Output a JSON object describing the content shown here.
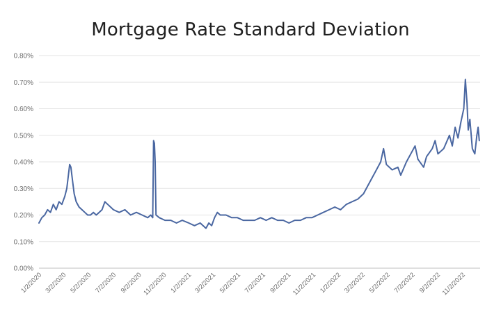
{
  "chart_data": {
    "type": "line",
    "title": "Mortgage Rate Standard Deviation",
    "xlabel": "",
    "ylabel": "",
    "ylim": [
      0,
      0.8
    ],
    "grid": true,
    "legend": "none",
    "y_ticks": [
      "0.00%",
      "0.10%",
      "0.20%",
      "0.30%",
      "0.40%",
      "0.50%",
      "0.60%",
      "0.70%",
      "0.80%"
    ],
    "x_ticks": [
      "1/2/2020",
      "3/2/2020",
      "5/2/2020",
      "7/2/2020",
      "9/2/2020",
      "11/2/2020",
      "1/2/2021",
      "3/2/2021",
      "5/2/2021",
      "7/2/2021",
      "9/2/2021",
      "11/2/2021",
      "1/2/2022",
      "3/2/2022",
      "5/2/2022",
      "7/2/2022",
      "9/2/2022",
      "11/2/2022"
    ],
    "series": [
      {
        "color": "#4a67a1",
        "points": [
          [
            "2020-01-02",
            0.17
          ],
          [
            "2020-01-09",
            0.19
          ],
          [
            "2020-01-16",
            0.2
          ],
          [
            "2020-01-23",
            0.22
          ],
          [
            "2020-01-30",
            0.21
          ],
          [
            "2020-02-06",
            0.24
          ],
          [
            "2020-02-13",
            0.22
          ],
          [
            "2020-02-20",
            0.25
          ],
          [
            "2020-02-27",
            0.24
          ],
          [
            "2020-03-05",
            0.27
          ],
          [
            "2020-03-10",
            0.3
          ],
          [
            "2020-03-14",
            0.35
          ],
          [
            "2020-03-17",
            0.39
          ],
          [
            "2020-03-20",
            0.38
          ],
          [
            "2020-03-24",
            0.33
          ],
          [
            "2020-03-28",
            0.28
          ],
          [
            "2020-04-02",
            0.25
          ],
          [
            "2020-04-09",
            0.23
          ],
          [
            "2020-04-16",
            0.22
          ],
          [
            "2020-04-23",
            0.21
          ],
          [
            "2020-04-30",
            0.2
          ],
          [
            "2020-05-07",
            0.2
          ],
          [
            "2020-05-14",
            0.21
          ],
          [
            "2020-05-21",
            0.2
          ],
          [
            "2020-05-28",
            0.21
          ],
          [
            "2020-06-04",
            0.22
          ],
          [
            "2020-06-11",
            0.25
          ],
          [
            "2020-06-18",
            0.24
          ],
          [
            "2020-06-25",
            0.23
          ],
          [
            "2020-07-02",
            0.22
          ],
          [
            "2020-07-16",
            0.21
          ],
          [
            "2020-07-30",
            0.22
          ],
          [
            "2020-08-13",
            0.2
          ],
          [
            "2020-08-27",
            0.21
          ],
          [
            "2020-09-10",
            0.2
          ],
          [
            "2020-09-24",
            0.19
          ],
          [
            "2020-10-01",
            0.2
          ],
          [
            "2020-10-06",
            0.19
          ],
          [
            "2020-10-08",
            0.48
          ],
          [
            "2020-10-10",
            0.47
          ],
          [
            "2020-10-12",
            0.4
          ],
          [
            "2020-10-14",
            0.2
          ],
          [
            "2020-10-22",
            0.19
          ],
          [
            "2020-11-05",
            0.18
          ],
          [
            "2020-11-19",
            0.18
          ],
          [
            "2020-12-03",
            0.17
          ],
          [
            "2020-12-17",
            0.18
          ],
          [
            "2021-01-02",
            0.17
          ],
          [
            "2021-01-16",
            0.16
          ],
          [
            "2021-01-30",
            0.17
          ],
          [
            "2021-02-13",
            0.15
          ],
          [
            "2021-02-20",
            0.17
          ],
          [
            "2021-02-27",
            0.16
          ],
          [
            "2021-03-06",
            0.19
          ],
          [
            "2021-03-13",
            0.21
          ],
          [
            "2021-03-20",
            0.2
          ],
          [
            "2021-04-03",
            0.2
          ],
          [
            "2021-04-17",
            0.19
          ],
          [
            "2021-05-01",
            0.19
          ],
          [
            "2021-05-15",
            0.18
          ],
          [
            "2021-05-29",
            0.18
          ],
          [
            "2021-06-12",
            0.18
          ],
          [
            "2021-06-26",
            0.19
          ],
          [
            "2021-07-10",
            0.18
          ],
          [
            "2021-07-24",
            0.19
          ],
          [
            "2021-08-07",
            0.18
          ],
          [
            "2021-08-21",
            0.18
          ],
          [
            "2021-09-04",
            0.17
          ],
          [
            "2021-09-18",
            0.18
          ],
          [
            "2021-10-02",
            0.18
          ],
          [
            "2021-10-16",
            0.19
          ],
          [
            "2021-10-30",
            0.19
          ],
          [
            "2021-11-13",
            0.2
          ],
          [
            "2021-11-27",
            0.21
          ],
          [
            "2021-12-11",
            0.22
          ],
          [
            "2021-12-25",
            0.23
          ],
          [
            "2022-01-08",
            0.22
          ],
          [
            "2022-01-22",
            0.24
          ],
          [
            "2022-02-05",
            0.25
          ],
          [
            "2022-02-19",
            0.26
          ],
          [
            "2022-03-05",
            0.28
          ],
          [
            "2022-03-19",
            0.32
          ],
          [
            "2022-04-02",
            0.36
          ],
          [
            "2022-04-16",
            0.4
          ],
          [
            "2022-04-23",
            0.45
          ],
          [
            "2022-04-30",
            0.39
          ],
          [
            "2022-05-14",
            0.37
          ],
          [
            "2022-05-28",
            0.38
          ],
          [
            "2022-06-04",
            0.35
          ],
          [
            "2022-06-18",
            0.4
          ],
          [
            "2022-07-02",
            0.44
          ],
          [
            "2022-07-09",
            0.46
          ],
          [
            "2022-07-16",
            0.41
          ],
          [
            "2022-07-30",
            0.38
          ],
          [
            "2022-08-06",
            0.42
          ],
          [
            "2022-08-20",
            0.45
          ],
          [
            "2022-08-27",
            0.48
          ],
          [
            "2022-09-03",
            0.43
          ],
          [
            "2022-09-17",
            0.45
          ],
          [
            "2022-10-01",
            0.5
          ],
          [
            "2022-10-08",
            0.46
          ],
          [
            "2022-10-15",
            0.53
          ],
          [
            "2022-10-22",
            0.49
          ],
          [
            "2022-10-29",
            0.55
          ],
          [
            "2022-11-05",
            0.6
          ],
          [
            "2022-11-09",
            0.71
          ],
          [
            "2022-11-13",
            0.62
          ],
          [
            "2022-11-16",
            0.52
          ],
          [
            "2022-11-20",
            0.56
          ],
          [
            "2022-11-26",
            0.45
          ],
          [
            "2022-12-02",
            0.43
          ],
          [
            "2022-12-07",
            0.5
          ],
          [
            "2022-12-10",
            0.53
          ],
          [
            "2022-12-13",
            0.48
          ]
        ]
      }
    ]
  }
}
